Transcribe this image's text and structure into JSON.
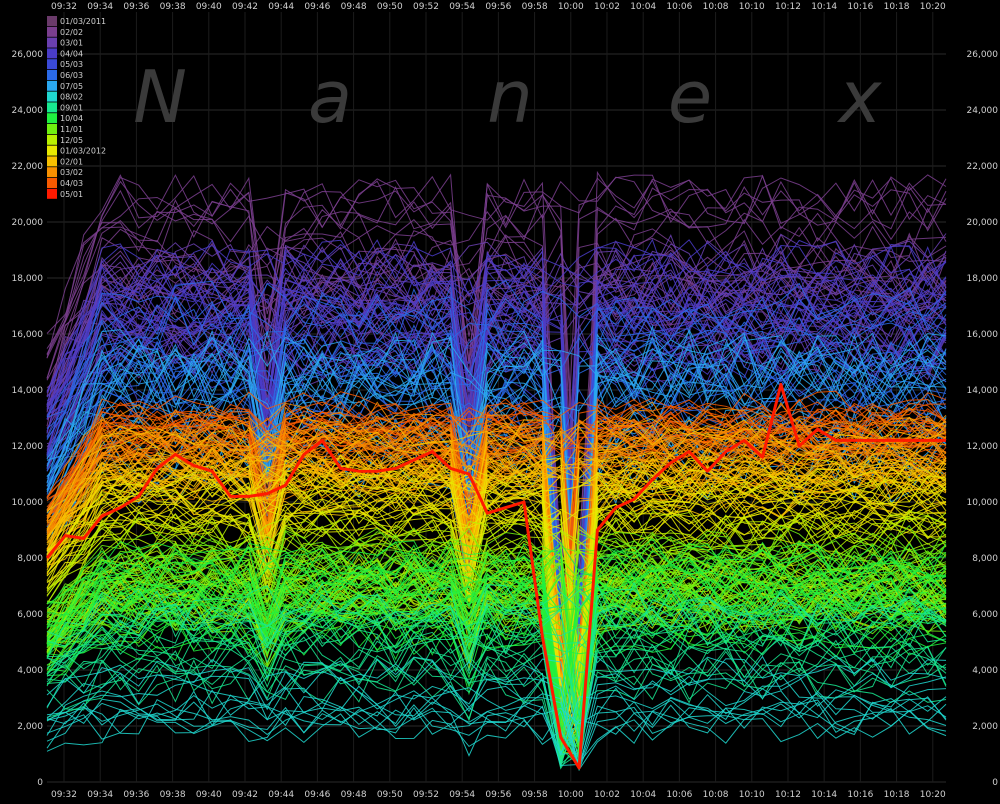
{
  "watermark": [
    "N",
    "a",
    "n",
    "e",
    "x"
  ],
  "chart_data": {
    "type": "line",
    "title": "",
    "xlabel": "",
    "ylabel": "",
    "x_ticks": [
      "09:32",
      "09:34",
      "09:36",
      "09:38",
      "09:40",
      "09:42",
      "09:44",
      "09:46",
      "09:48",
      "09:50",
      "09:52",
      "09:54",
      "09:56",
      "09:58",
      "10:00",
      "10:02",
      "10:04",
      "10:06",
      "10:08",
      "10:10",
      "10:12",
      "10:14",
      "10:16",
      "10:18",
      "10:20"
    ],
    "y_ticks": [
      0,
      2000,
      4000,
      6000,
      8000,
      10000,
      12000,
      14000,
      16000,
      18000,
      20000,
      22000,
      24000,
      26000
    ],
    "y_tick_labels": [
      "0",
      "2,000",
      "4,000",
      "6,000",
      "8,000",
      "10,000",
      "12,000",
      "14,000",
      "16,000",
      "18,000",
      "20,000",
      "22,000",
      "24,000",
      "26,000"
    ],
    "ylim": [
      0,
      27500
    ],
    "grid": true,
    "legend_placement": "top-left",
    "legend": [
      {
        "label": "01/03/2011",
        "color": "#6a3a6a"
      },
      {
        "label": "02/02",
        "color": "#7a3e8e"
      },
      {
        "label": "03/01",
        "color": "#6a3fb0"
      },
      {
        "label": "04/04",
        "color": "#4a3cc8"
      },
      {
        "label": "05/03",
        "color": "#3a4ad8"
      },
      {
        "label": "06/03",
        "color": "#2a6ae8"
      },
      {
        "label": "07/05",
        "color": "#2aa8f0"
      },
      {
        "label": "08/02",
        "color": "#20d8d0"
      },
      {
        "label": "09/01",
        "color": "#18e890"
      },
      {
        "label": "10/04",
        "color": "#20f040"
      },
      {
        "label": "11/01",
        "color": "#70f010"
      },
      {
        "label": "12/05",
        "color": "#b8f000"
      },
      {
        "label": "01/03/2012",
        "color": "#e8e800"
      },
      {
        "label": "02/01",
        "color": "#f8c000"
      },
      {
        "label": "03/02",
        "color": "#f89000"
      },
      {
        "label": "04/03",
        "color": "#f85a00"
      },
      {
        "label": "05/01",
        "color": "#ff1a00"
      }
    ],
    "highlight_series": {
      "name": "05/01",
      "color": "#ff1a00",
      "x": [
        "09:32",
        "09:33",
        "09:34",
        "09:35",
        "09:36",
        "09:37",
        "09:38",
        "09:39",
        "09:40",
        "09:41",
        "09:42",
        "09:43",
        "09:44",
        "09:45",
        "09:46",
        "09:47",
        "09:48",
        "09:49",
        "09:50",
        "09:51",
        "09:52",
        "09:53",
        "09:54",
        "09:55",
        "09:56",
        "09:57",
        "09:58",
        "09:59",
        "10:00",
        "10:01",
        "10:02",
        "10:03",
        "10:04",
        "10:05",
        "10:06",
        "10:07",
        "10:08",
        "10:09",
        "10:10",
        "10:11",
        "10:12",
        "10:13",
        "10:14",
        "10:15",
        "10:16",
        "10:17",
        "10:18",
        "10:19",
        "10:20",
        "10:21"
      ],
      "values": [
        8000,
        8800,
        8700,
        9500,
        9800,
        10200,
        11200,
        11700,
        11300,
        11100,
        10200,
        10200,
        10300,
        10600,
        11700,
        12200,
        11200,
        11100,
        11100,
        11200,
        11500,
        11800,
        11200,
        11000,
        9600,
        9800,
        10000,
        5200,
        1600,
        500,
        9000,
        9800,
        10100,
        10800,
        11400,
        11800,
        11100,
        11800,
        12200,
        11600,
        14200,
        12000,
        12600,
        12200,
        12200,
        12200,
        12200,
        12200,
        12200,
        12200
      ]
    }
  }
}
